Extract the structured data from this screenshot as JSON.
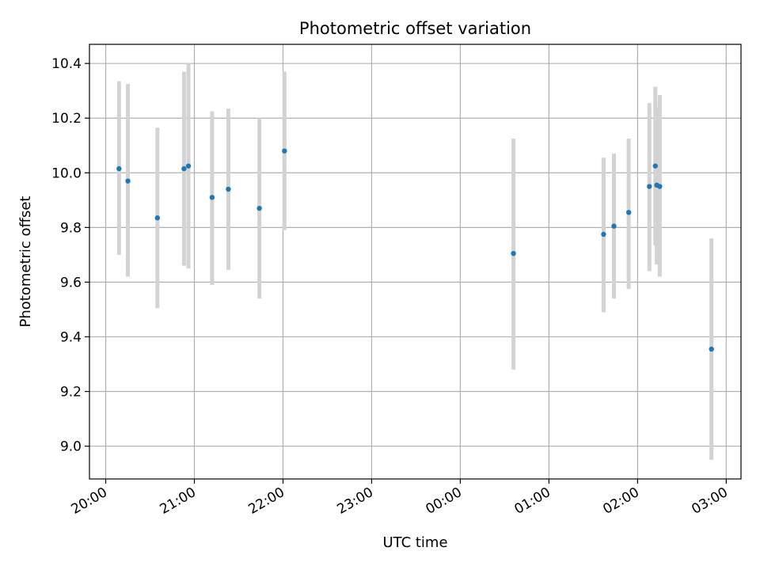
{
  "chart_data": {
    "type": "scatter",
    "title": "Photometric offset variation",
    "xlabel": "UTC time",
    "ylabel": "Photometric offset",
    "xlim": [
      "19:49",
      "03:10"
    ],
    "ylim": [
      8.88,
      10.47
    ],
    "grid": true,
    "x_ticks": [
      "20:00",
      "21:00",
      "22:00",
      "23:00",
      "00:00",
      "01:00",
      "02:00",
      "03:00"
    ],
    "y_ticks": [
      9.0,
      9.2,
      9.4,
      9.6,
      9.8,
      10.0,
      10.2,
      10.4
    ],
    "point_color": "#1f77b4",
    "errorbar_color": "#d3d3d3",
    "points": [
      {
        "x": "20:09",
        "y": 10.015,
        "lo": 9.7,
        "hi": 10.335
      },
      {
        "x": "20:15",
        "y": 9.97,
        "lo": 9.62,
        "hi": 10.325
      },
      {
        "x": "20:35",
        "y": 9.835,
        "lo": 9.505,
        "hi": 10.165
      },
      {
        "x": "20:53",
        "y": 10.015,
        "lo": 9.66,
        "hi": 10.37
      },
      {
        "x": "20:56",
        "y": 10.025,
        "lo": 9.65,
        "hi": 10.4
      },
      {
        "x": "21:12",
        "y": 9.91,
        "lo": 9.59,
        "hi": 10.225
      },
      {
        "x": "21:23",
        "y": 9.94,
        "lo": 9.645,
        "hi": 10.235
      },
      {
        "x": "21:44",
        "y": 9.87,
        "lo": 9.54,
        "hi": 10.2
      },
      {
        "x": "22:01",
        "y": 10.08,
        "lo": 9.79,
        "hi": 10.37
      },
      {
        "x": "00:36",
        "y": 9.705,
        "lo": 9.28,
        "hi": 10.125
      },
      {
        "x": "01:37",
        "y": 9.775,
        "lo": 9.49,
        "hi": 10.055
      },
      {
        "x": "01:44",
        "y": 9.805,
        "lo": 9.54,
        "hi": 10.07
      },
      {
        "x": "01:54",
        "y": 9.855,
        "lo": 9.575,
        "hi": 10.125
      },
      {
        "x": "02:08",
        "y": 9.95,
        "lo": 9.64,
        "hi": 10.255
      },
      {
        "x": "02:12",
        "y": 10.025,
        "lo": 9.735,
        "hi": 10.315
      },
      {
        "x": "02:13",
        "y": 9.955,
        "lo": 9.665,
        "hi": 10.24
      },
      {
        "x": "02:15",
        "y": 9.95,
        "lo": 9.62,
        "hi": 10.285
      },
      {
        "x": "02:50",
        "y": 9.355,
        "lo": 8.95,
        "hi": 9.76
      }
    ]
  }
}
